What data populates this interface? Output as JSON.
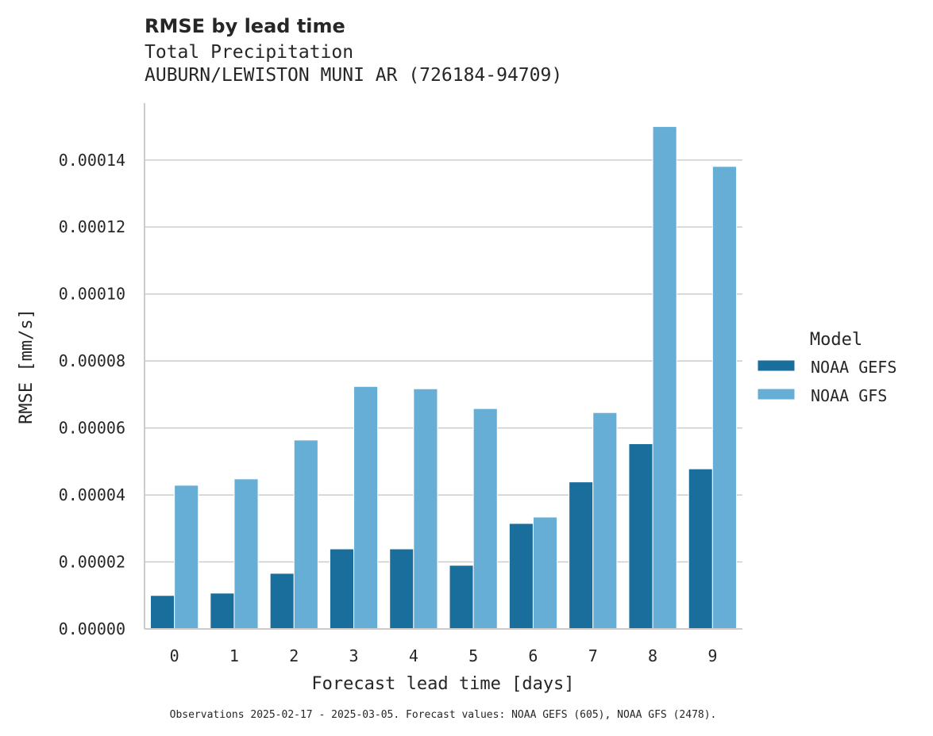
{
  "chart_data": {
    "type": "bar",
    "title": "RMSE by lead time",
    "subtitle_lines": [
      "Total Precipitation",
      "AUBURN/LEWISTON MUNI AR (726184-94709)"
    ],
    "xlabel": "Forecast lead time [days]",
    "ylabel": "RMSE [mm/s]",
    "categories": [
      "0",
      "1",
      "2",
      "3",
      "4",
      "5",
      "6",
      "7",
      "8",
      "9"
    ],
    "ylim": [
      0,
      0.000157
    ],
    "yticks": [
      0,
      2e-05,
      4e-05,
      6e-05,
      8e-05,
      0.0001,
      0.00012,
      0.00014
    ],
    "ytick_labels": [
      "0.00000",
      "0.00002",
      "0.00004",
      "0.00006",
      "0.00008",
      "0.00010",
      "0.00012",
      "0.00014"
    ],
    "grid": "y",
    "legend": {
      "title": "Model",
      "placement": "right"
    },
    "series": [
      {
        "name": "NOAA GEFS",
        "color": "#1a6e9c",
        "values": [
          1e-05,
          1.07e-05,
          1.66e-05,
          2.39e-05,
          2.39e-05,
          1.9e-05,
          3.15e-05,
          4.39e-05,
          5.53e-05,
          4.78e-05
        ]
      },
      {
        "name": "NOAA GFS",
        "color": "#67aed6",
        "values": [
          4.29e-05,
          4.48e-05,
          5.64e-05,
          7.24e-05,
          7.17e-05,
          6.58e-05,
          3.34e-05,
          6.46e-05,
          0.00015,
          0.0001381
        ]
      }
    ],
    "footnote": "Observations 2025-02-17 - 2025-03-05. Forecast values: NOAA GEFS (605), NOAA GFS (2478)."
  }
}
